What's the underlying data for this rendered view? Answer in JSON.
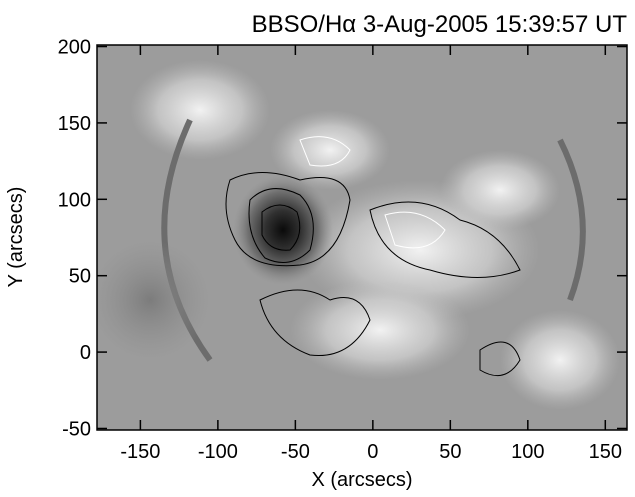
{
  "chart_data": {
    "type": "image",
    "title": "BBSO/Hα  3-Aug-2005 15:39:57 UT",
    "x_label": "X (arcsecs)",
    "y_label": "Y (arcsecs)",
    "xlim": [
      -178,
      164
    ],
    "xticks": [
      -150,
      -100,
      -50,
      0,
      50,
      100,
      150
    ],
    "ylim": [
      -51,
      201
    ],
    "yticks": [
      -50,
      0,
      50,
      100,
      150,
      200
    ]
  }
}
